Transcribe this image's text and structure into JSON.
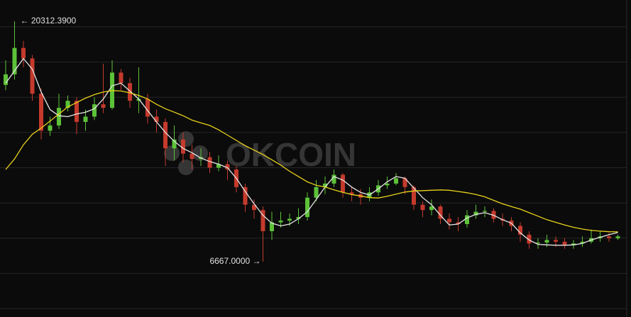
{
  "chart_data": {
    "type": "candlestick",
    "watermark": "OKCOIN",
    "up_color": "#5cc238",
    "down_color": "#c43a2c",
    "ylim": [
      3527,
      21520
    ],
    "yticks": [
      4000,
      6000,
      8000,
      10000,
      12000,
      14000,
      16000,
      18000,
      20000
    ],
    "grid": true,
    "open": [
      16700,
      17300,
      18800,
      18200,
      16200,
      14100,
      14400,
      15400,
      15800,
      14600,
      14900,
      15600,
      15400,
      17400,
      16800,
      15800,
      15900,
      14900,
      14600,
      13100,
      13600,
      12800,
      12500,
      12600,
      12000,
      12200,
      11900,
      10900,
      9900,
      9600,
      8400,
      8900,
      9000,
      9100,
      9200,
      10300,
      10900,
      11100,
      11600,
      10600,
      10500,
      10300,
      10600,
      11000,
      11100,
      11400,
      10900,
      9900,
      9600,
      9800,
      9100,
      8900,
      8800,
      9300,
      9500,
      9550,
      9100,
      9000,
      8700,
      8200,
      7700,
      7750,
      7900,
      7800,
      7600,
      7700,
      7800,
      8000,
      8100,
      8000
    ],
    "high": [
      18100,
      20312.39,
      19200,
      18400,
      16500,
      14900,
      16200,
      16100,
      16000,
      15300,
      16000,
      17900,
      18100,
      17600,
      17100,
      17700,
      16200,
      15300,
      14800,
      14400,
      14000,
      13300,
      13100,
      12900,
      12700,
      12400,
      12100,
      11100,
      10200,
      9800,
      9500,
      9500,
      9400,
      9700,
      10600,
      11300,
      11500,
      11900,
      11700,
      10900,
      10800,
      10900,
      11300,
      11500,
      11700,
      11500,
      11000,
      10100,
      10200,
      9900,
      9400,
      9200,
      9600,
      9900,
      9800,
      9700,
      9400,
      9200,
      8900,
      8400,
      8000,
      8200,
      8100,
      8000,
      7900,
      8100,
      8500,
      8400,
      8300,
      8200
    ],
    "low": [
      16400,
      17000,
      17700,
      15800,
      13600,
      13800,
      14200,
      15200,
      13900,
      14100,
      14700,
      15100,
      15300,
      16400,
      15400,
      15100,
      14500,
      14000,
      12100,
      12400,
      12300,
      11900,
      12100,
      11700,
      11800,
      11300,
      10600,
      9500,
      9100,
      6667,
      7900,
      8600,
      8700,
      8800,
      9000,
      10100,
      10500,
      10900,
      10300,
      10100,
      9900,
      10100,
      10400,
      10800,
      11000,
      10500,
      9600,
      9200,
      9300,
      8800,
      8500,
      8400,
      8600,
      9100,
      9200,
      8900,
      8700,
      8400,
      7800,
      7400,
      7400,
      7500,
      7500,
      7400,
      7400,
      7500,
      7700,
      7800,
      7800,
      7900
    ],
    "close": [
      17300,
      18800,
      18200,
      16200,
      14100,
      14400,
      15400,
      15800,
      14600,
      14900,
      15600,
      15400,
      17400,
      16800,
      15800,
      15900,
      14900,
      14600,
      13100,
      13600,
      12800,
      12500,
      12600,
      12000,
      12200,
      11900,
      10900,
      9900,
      9600,
      8400,
      8900,
      9000,
      9100,
      9200,
      10300,
      10900,
      11100,
      11600,
      10600,
      10500,
      10300,
      10600,
      11000,
      11100,
      11400,
      10900,
      9900,
      9600,
      9800,
      9100,
      8900,
      8800,
      9300,
      9500,
      9550,
      9100,
      9000,
      8700,
      8200,
      7700,
      7750,
      7900,
      7800,
      7600,
      7700,
      7800,
      8000,
      8100,
      8000,
      8100
    ],
    "lines": [
      {
        "color": "#e6e6e6",
        "values": [
          16800,
          17500,
          18200,
          17600,
          16300,
          15300,
          14950,
          14900,
          15050,
          15150,
          15350,
          15900,
          16650,
          16800,
          16350,
          15900,
          15250,
          14600,
          14000,
          13500,
          13100,
          12850,
          12550,
          12350,
          12200,
          12000,
          11400,
          10650,
          9950,
          9300,
          8850,
          8700,
          8800,
          9100,
          9500,
          10200,
          10900,
          11500,
          11300,
          10900,
          10600,
          10450,
          10800,
          11200,
          11500,
          11400,
          10850,
          10300,
          9900,
          9300,
          8750,
          8800,
          9150,
          9350,
          9450,
          9300,
          9050,
          8850,
          8300,
          7900,
          7650,
          7620,
          7600,
          7600,
          7620,
          7700,
          7900,
          8050,
          8200,
          8320
        ]
      },
      {
        "color": "#e8d21c",
        "values": [
          11900,
          12500,
          13300,
          13900,
          14250,
          14650,
          15050,
          15450,
          15700,
          15950,
          16150,
          16300,
          16380,
          16350,
          16250,
          16100,
          15900,
          15600,
          15350,
          15150,
          14950,
          14700,
          14550,
          14400,
          14150,
          13850,
          13550,
          13250,
          13000,
          12750,
          12450,
          12150,
          11800,
          11500,
          11200,
          11000,
          10900,
          10750,
          10600,
          10480,
          10400,
          10300,
          10280,
          10380,
          10500,
          10620,
          10680,
          10700,
          10720,
          10740,
          10720,
          10650,
          10580,
          10480,
          10350,
          10150,
          9950,
          9800,
          9650,
          9450,
          9250,
          9050,
          8900,
          8750,
          8620,
          8520,
          8440,
          8400,
          8370,
          8360
        ]
      }
    ],
    "annotations": [
      {
        "value": 20312.39,
        "label": "← 20312.3900"
      },
      {
        "value": 6667,
        "label": "6667.0000 →"
      }
    ]
  }
}
